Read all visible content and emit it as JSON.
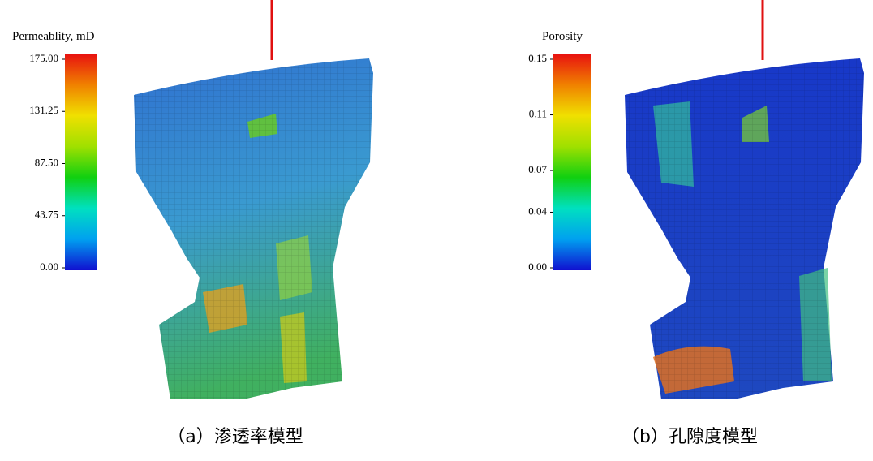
{
  "panels": [
    {
      "colorbar": {
        "title": "Permeablity, mD",
        "lim": [
          0,
          175
        ],
        "ticks": [
          {
            "value": 175,
            "label": "175.00"
          },
          {
            "value": 131.25,
            "label": "131.25"
          },
          {
            "value": 87.5,
            "label": "87.50"
          },
          {
            "value": 43.75,
            "label": "43.75"
          },
          {
            "value": 0,
            "label": "0.00"
          }
        ],
        "colors": [
          "#1010d0",
          "#00a0f0",
          "#00e0c0",
          "#10d010",
          "#a0e000",
          "#f0e000",
          "#f08000",
          "#e81010"
        ]
      },
      "caption": "（a）渗透率模型"
    },
    {
      "colorbar": {
        "title": "Porosity",
        "lim": [
          0,
          0.15
        ],
        "ticks": [
          {
            "value": 0.15,
            "label": "0.15"
          },
          {
            "value": 0.11,
            "label": "0.11"
          },
          {
            "value": 0.07,
            "label": "0.07"
          },
          {
            "value": 0.04,
            "label": "0.04"
          },
          {
            "value": 0,
            "label": "0.00"
          }
        ],
        "colors": [
          "#1010d0",
          "#00a0f0",
          "#00e0c0",
          "#10d010",
          "#a0e000",
          "#f0e000",
          "#f08000",
          "#e81010"
        ]
      },
      "caption": "（b）孔隙度模型"
    }
  ]
}
